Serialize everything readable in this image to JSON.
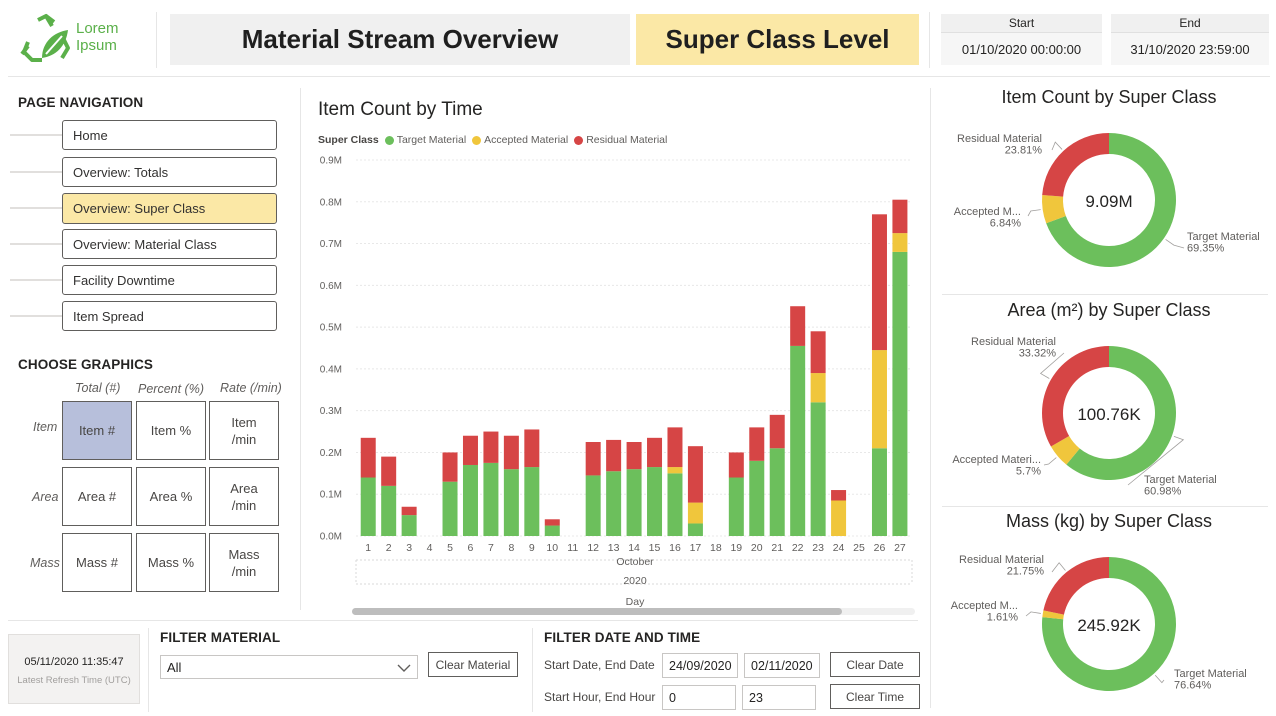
{
  "logo": {
    "text_line1": "Lorem",
    "text_line2": "Ipsum",
    "icon": "recycle-leaf-icon",
    "color": "#5bb04a"
  },
  "header": {
    "title": "Material Stream Overview",
    "level": "Super Class Level",
    "start_label": "Start",
    "start_value": "01/10/2020 00:00:00",
    "end_label": "End",
    "end_value": "31/10/2020 23:59:00",
    "level_color": "#fbe8a6"
  },
  "navigation": {
    "title": "PAGE NAVIGATION",
    "items": [
      {
        "label": "Home",
        "active": false
      },
      {
        "label": "Overview: Totals",
        "active": false
      },
      {
        "label": "Overview: Super Class",
        "active": true
      },
      {
        "label": "Overview: Material Class",
        "active": false
      },
      {
        "label": "Facility Downtime",
        "active": false
      },
      {
        "label": "Item Spread",
        "active": false
      }
    ]
  },
  "graphics": {
    "title": "CHOOSE GRAPHICS",
    "col_headers": [
      "Total (#)",
      "Percent (%)",
      "Rate (/min)"
    ],
    "row_headers": [
      "Item",
      "Area",
      "Mass"
    ],
    "buttons": [
      [
        "Item #",
        "Item %",
        "Item\n/min"
      ],
      [
        "Area #",
        "Area %",
        "Area\n/min"
      ],
      [
        "Mass #",
        "Mass %",
        "Mass\n/min"
      ]
    ],
    "selected": "Item #"
  },
  "refresh": {
    "time": "05/11/2020 11:35:47",
    "label": "Latest Refresh Time (UTC)"
  },
  "filter_material": {
    "title": "FILTER MATERIAL",
    "value": "All",
    "clear_label": "Clear Material"
  },
  "filter_date": {
    "title": "FILTER DATE AND TIME",
    "date_label": "Start Date, End Date",
    "start_date": "24/09/2020",
    "end_date": "02/11/2020",
    "clear_date_label": "Clear Date",
    "hour_label": "Start Hour, End Hour",
    "start_hour": "0",
    "end_hour": "23",
    "clear_time_label": "Clear Time"
  },
  "chart_data": [
    {
      "type": "bar",
      "stacked": true,
      "title": "Item Count by Time",
      "legend_title": "Super Class",
      "legend_position": "top-left",
      "xlabel": "Day",
      "x_group_labels": [
        "October",
        "2020"
      ],
      "ylim": [
        0,
        0.9
      ],
      "yticks": [
        "0.0M",
        "0.1M",
        "0.2M",
        "0.3M",
        "0.4M",
        "0.5M",
        "0.6M",
        "0.7M",
        "0.8M",
        "0.9M"
      ],
      "categories": [
        "1",
        "2",
        "3",
        "4",
        "5",
        "6",
        "7",
        "8",
        "9",
        "10",
        "11",
        "12",
        "13",
        "14",
        "15",
        "16",
        "17",
        "18",
        "19",
        "20",
        "21",
        "22",
        "23",
        "24",
        "25",
        "26",
        "27"
      ],
      "series": [
        {
          "name": "Target Material",
          "color": "#6cbf5c",
          "values": [
            0.14,
            0.12,
            0.05,
            0,
            0.13,
            0.17,
            0.175,
            0.16,
            0.165,
            0.025,
            0,
            0.145,
            0.155,
            0.16,
            0.165,
            0.15,
            0.03,
            0,
            0.14,
            0.18,
            0.21,
            0.455,
            0.32,
            0,
            0,
            0.21,
            0.68
          ]
        },
        {
          "name": "Accepted Material",
          "color": "#f0c63c",
          "values": [
            0,
            0,
            0,
            0,
            0,
            0,
            0,
            0,
            0,
            0,
            0,
            0,
            0,
            0,
            0,
            0.015,
            0.05,
            0,
            0,
            0,
            0,
            0,
            0.07,
            0.085,
            0,
            0.235,
            0.045
          ]
        },
        {
          "name": "Residual Material",
          "color": "#d64545",
          "values": [
            0.095,
            0.07,
            0.02,
            0,
            0.07,
            0.07,
            0.075,
            0.08,
            0.09,
            0.015,
            0,
            0.08,
            0.075,
            0.065,
            0.07,
            0.095,
            0.135,
            0,
            0.06,
            0.08,
            0.08,
            0.095,
            0.1,
            0.025,
            0,
            0.325,
            0.08
          ]
        }
      ]
    },
    {
      "type": "pie",
      "donut": true,
      "title": "Item Count by Super Class",
      "center_value": "9.09M",
      "slices": [
        {
          "name": "Target Material",
          "pct": 69.35,
          "label_lines": [
            "Target Material",
            "69.35%"
          ],
          "color": "#6cbf5c"
        },
        {
          "name": "Accepted Material",
          "pct": 6.84,
          "label_lines": [
            "Accepted M...",
            "6.84%"
          ],
          "color": "#f0c63c"
        },
        {
          "name": "Residual Material",
          "pct": 23.81,
          "label_lines": [
            "Residual Material",
            "23.81%"
          ],
          "color": "#d64545"
        }
      ]
    },
    {
      "type": "pie",
      "donut": true,
      "title": "Area (m²) by Super Class",
      "center_value": "100.76K",
      "slices": [
        {
          "name": "Target Material",
          "pct": 60.98,
          "label_lines": [
            "Target Material",
            "60.98%"
          ],
          "color": "#6cbf5c"
        },
        {
          "name": "Accepted Material",
          "pct": 5.7,
          "label_lines": [
            "Accepted Materi...",
            "5.7%"
          ],
          "color": "#f0c63c"
        },
        {
          "name": "Residual Material",
          "pct": 33.32,
          "label_lines": [
            "Residual Material",
            "33.32%"
          ],
          "color": "#d64545"
        }
      ]
    },
    {
      "type": "pie",
      "donut": true,
      "title": "Mass (kg) by Super Class",
      "center_value": "245.92K",
      "slices": [
        {
          "name": "Target Material",
          "pct": 76.64,
          "label_lines": [
            "Target Material",
            "76.64%"
          ],
          "color": "#6cbf5c"
        },
        {
          "name": "Accepted Material",
          "pct": 1.61,
          "label_lines": [
            "Accepted M...",
            "1.61%"
          ],
          "color": "#f0c63c"
        },
        {
          "name": "Residual Material",
          "pct": 21.75,
          "label_lines": [
            "Residual Material",
            "21.75%"
          ],
          "color": "#d64545"
        }
      ]
    }
  ]
}
